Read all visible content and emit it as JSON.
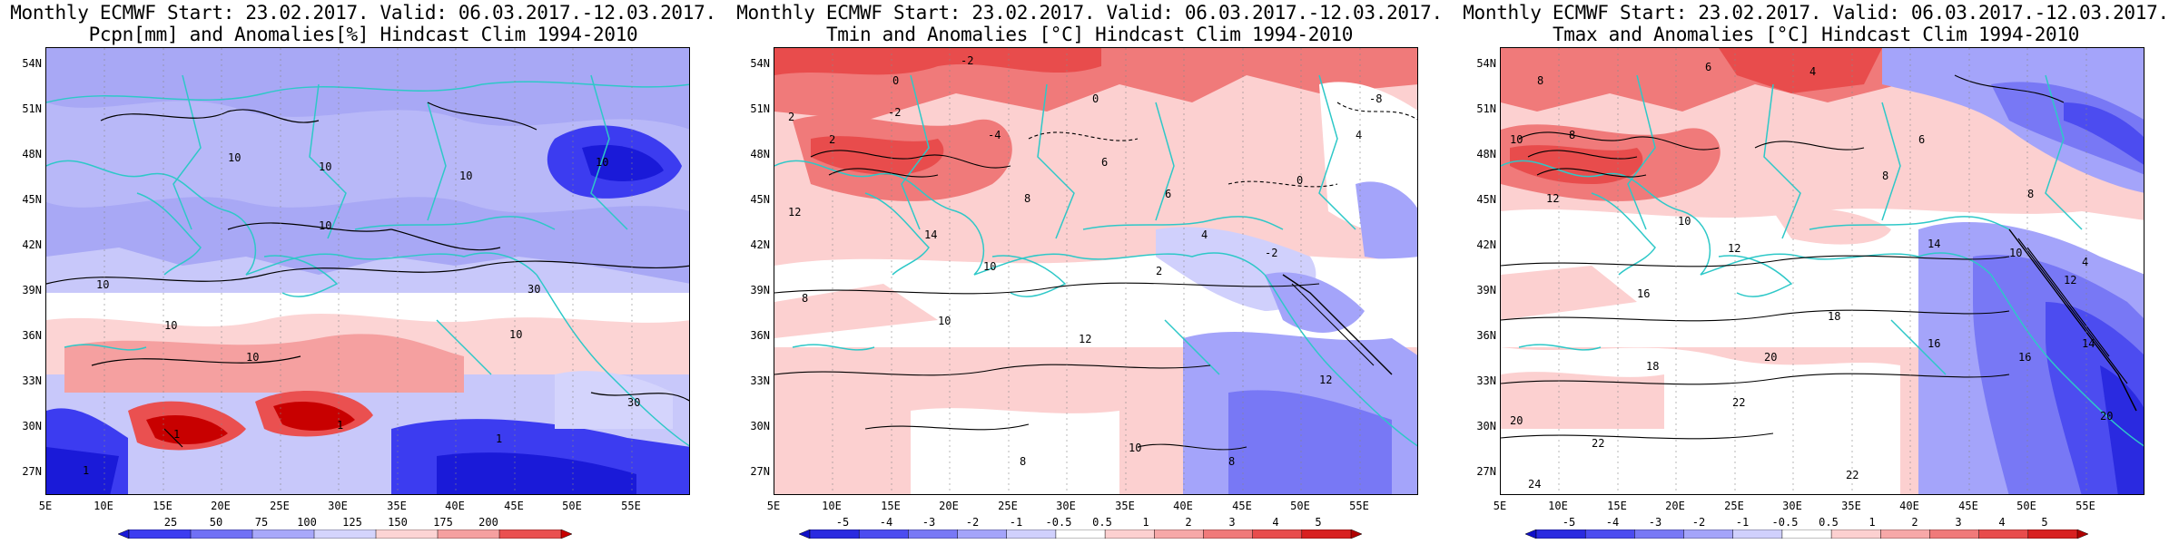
{
  "panels": [
    {
      "title_line1": "Monthly ECMWF Start: 23.02.2017. Valid: 06.03.2017.-12.03.2017.",
      "title_line2": "Pcpn[mm] and Anomalies[%] Hindcast Clim 1994-2010",
      "colorbar_labels": [
        "25",
        "50",
        "75",
        "100",
        "125",
        "150",
        "175",
        "200"
      ],
      "colorbar_colors": [
        "#1a1ad8",
        "#3c3cf0",
        "#7070f5",
        "#a8a8fa",
        "#d4d4fc",
        "#fcd4d4",
        "#f5a0a0",
        "#ea5050",
        "#c80000"
      ]
    },
    {
      "title_line1": "Monthly ECMWF Start: 23.02.2017. Valid: 06.03.2017.-12.03.2017.",
      "title_line2": "Tmin and Anomalies [°C] Hindcast Clim 1994-2010",
      "colorbar_labels": [
        "-5",
        "-4",
        "-3",
        "-2",
        "-1",
        "-0.5",
        "0.5",
        "1",
        "2",
        "3",
        "4",
        "5"
      ],
      "colorbar_colors": [
        "#1010c8",
        "#2a2ae0",
        "#4c4cf0",
        "#7878f5",
        "#a4a4fa",
        "#d0d0fc",
        "#ffffff",
        "#fcd0d0",
        "#f7a8a8",
        "#f07a7a",
        "#e84c4c",
        "#d82020",
        "#b00000"
      ]
    },
    {
      "title_line1": "Monthly ECMWF Start: 23.02.2017. Valid: 06.03.2017.-12.03.2017.",
      "title_line2": "Tmax and Anomalies [°C] Hindcast Clim 1994-2010",
      "colorbar_labels": [
        "-5",
        "-4",
        "-3",
        "-2",
        "-1",
        "-0.5",
        "0.5",
        "1",
        "2",
        "3",
        "4",
        "5"
      ],
      "colorbar_colors": [
        "#1010c8",
        "#2a2ae0",
        "#4c4cf0",
        "#7878f5",
        "#a4a4fa",
        "#d0d0fc",
        "#ffffff",
        "#fcd0d0",
        "#f7a8a8",
        "#f07a7a",
        "#e84c4c",
        "#d82020",
        "#b00000"
      ]
    }
  ],
  "lat_labels": [
    "54N",
    "51N",
    "48N",
    "45N",
    "42N",
    "39N",
    "36N",
    "33N",
    "30N",
    "27N"
  ],
  "lon_labels": [
    "5E",
    "10E",
    "15E",
    "20E",
    "25E",
    "30E",
    "35E",
    "40E",
    "45E",
    "50E",
    "55E"
  ],
  "contour_labels": {
    "pcpn": [
      "10",
      "10",
      "10",
      "10",
      "10",
      "10",
      "30",
      "10",
      "10",
      "10",
      "30",
      "1",
      "1",
      "1",
      "1"
    ],
    "tmin": [
      "-2",
      "0",
      "2",
      "-2",
      "-4",
      "0",
      "2",
      "6",
      "8",
      "12",
      "14",
      "10",
      "8",
      "10",
      "12",
      "6",
      "4",
      "2",
      "-2",
      "0",
      "-8",
      "4",
      "12",
      "10",
      "8",
      "8"
    ],
    "tmax": [
      "6",
      "4",
      "8",
      "10",
      "8",
      "12",
      "6",
      "10",
      "8",
      "12",
      "16",
      "18",
      "20",
      "22",
      "18",
      "14",
      "16",
      "24",
      "22",
      "20",
      "10",
      "12",
      "14",
      "16",
      "20",
      "22",
      "4",
      "8"
    ]
  },
  "colors": {
    "coast": "#2ec8c8",
    "contour": "#000000"
  }
}
